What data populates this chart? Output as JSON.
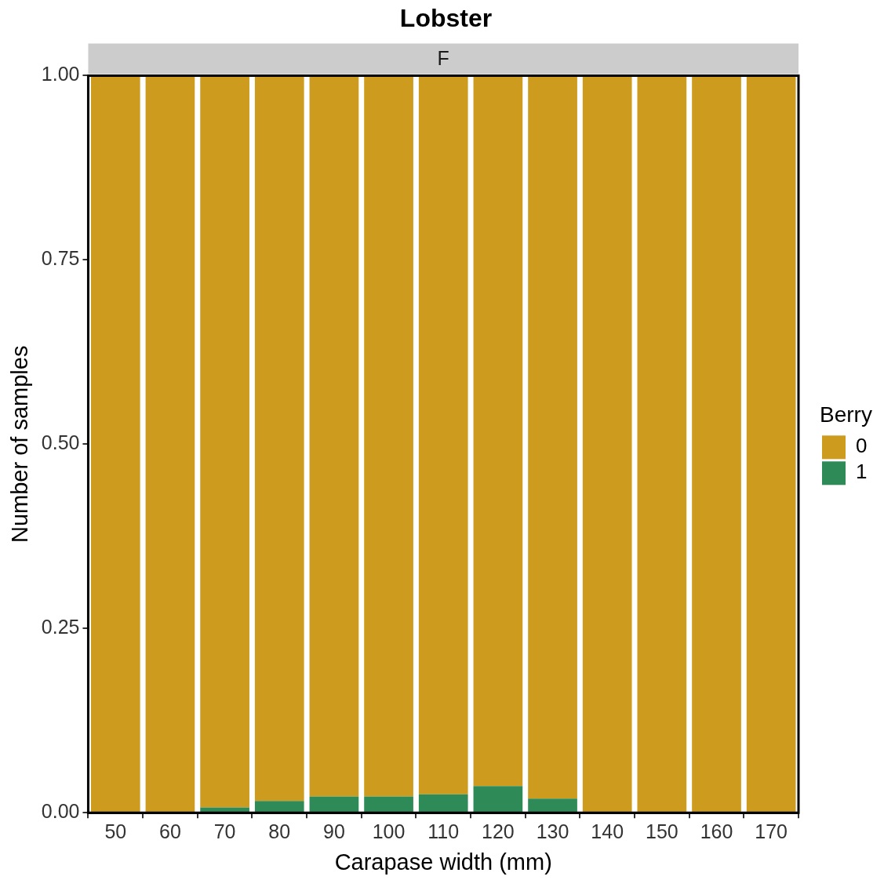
{
  "chart_data": {
    "type": "bar",
    "title": "Lobster",
    "subtitle": "F",
    "xlabel": "Carapase width (mm)",
    "ylabel": "Number of samples",
    "legend_title": "Berry",
    "legend": "right",
    "stacked": true,
    "categories": [
      "50",
      "60",
      "70",
      "80",
      "90",
      "100",
      "110",
      "120",
      "130",
      "140",
      "150",
      "160",
      "170"
    ],
    "series": [
      {
        "name": "1",
        "color": "#2e8b57",
        "values": [
          0,
          0,
          0.007,
          0.016,
          0.022,
          0.022,
          0.025,
          0.036,
          0.019,
          0,
          0,
          0,
          0
        ]
      },
      {
        "name": "0",
        "color": "#cd9b1d",
        "values": [
          1,
          1,
          0.993,
          0.984,
          0.978,
          0.978,
          0.975,
          0.964,
          0.981,
          1,
          1,
          1,
          1
        ]
      }
    ],
    "ylim": [
      0,
      1
    ],
    "yticks": [
      {
        "value": 0,
        "label": "0.00"
      },
      {
        "value": 0.25,
        "label": "0.25"
      },
      {
        "value": 0.5,
        "label": "0.50"
      },
      {
        "value": 0.75,
        "label": "0.75"
      },
      {
        "value": 1,
        "label": "1.00"
      }
    ]
  }
}
